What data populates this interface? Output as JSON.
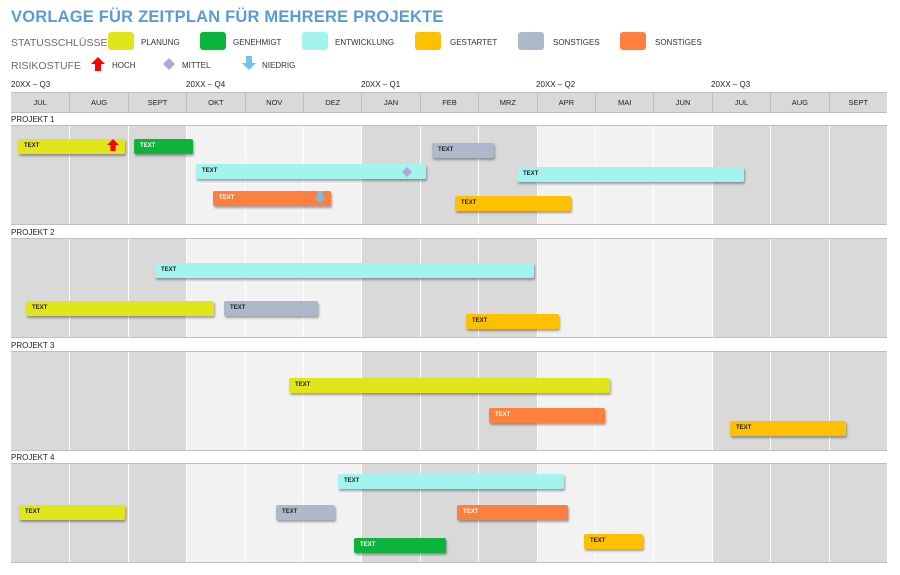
{
  "title": "VORLAGE FÜR ZEITPLAN FÜR MEHRERE PROJEKTE",
  "legend": {
    "status_label": "STATUSSCHLÜSSEL",
    "risk_label": "RISIKOSTUFE",
    "status": [
      {
        "label": "PLANUNG",
        "color": "#e0e61a"
      },
      {
        "label": "GENEHMIGT",
        "color": "#0db43b"
      },
      {
        "label": "ENTWICKLUNG",
        "color": "#a3f4ef"
      },
      {
        "label": "GESTARTET",
        "color": "#ffc000"
      },
      {
        "label": "SONSTIGES",
        "color": "#adb9ca"
      },
      {
        "label": "SONSTIGES",
        "color": "#ff7f3f"
      }
    ],
    "risk": [
      {
        "label": "HOCH",
        "icon": "up-arrow-icon",
        "color": "#ff0000"
      },
      {
        "label": "MITTEL",
        "icon": "diamond-icon",
        "color": "#b4a7d6"
      },
      {
        "label": "NIEDRIG",
        "icon": "down-arrow-icon",
        "color": "#6ec3f0"
      }
    ]
  },
  "timeline": {
    "quarters": [
      "20XX – Q3",
      "20XX – Q4",
      "20XX – Q1",
      "20XX – Q2",
      "20XX – Q3"
    ],
    "months": [
      "JUL",
      "AUG",
      "SEPT",
      "OKT",
      "NOV",
      "DEZ",
      "JAN",
      "FEB",
      "MRZ",
      "APR",
      "MAI",
      "JUN",
      "JUL",
      "AUG",
      "SEPT"
    ]
  },
  "projects": [
    {
      "name": "PROJEKT 1",
      "tasks": [
        {
          "label": "TEXT",
          "status": "planning"
        },
        {
          "label": "TEXT",
          "status": "approved"
        },
        {
          "label": "TEXT",
          "status": "development"
        },
        {
          "label": "TEXT",
          "status": "other-orange"
        },
        {
          "label": "TEXT",
          "status": "other-gray"
        },
        {
          "label": "TEXT",
          "status": "development"
        },
        {
          "label": "TEXT",
          "status": "started"
        }
      ]
    },
    {
      "name": "PROJEKT 2",
      "tasks": [
        {
          "label": "TEXT",
          "status": "development"
        },
        {
          "label": "TEXT",
          "status": "planning"
        },
        {
          "label": "TEXT",
          "status": "other-gray"
        },
        {
          "label": "TEXT",
          "status": "started"
        }
      ]
    },
    {
      "name": "PROJEKT 3",
      "tasks": [
        {
          "label": "TEXT",
          "status": "planning"
        },
        {
          "label": "TEXT",
          "status": "other-orange"
        },
        {
          "label": "TEXT",
          "status": "started"
        }
      ]
    },
    {
      "name": "PROJEKT 4",
      "tasks": [
        {
          "label": "TEXT",
          "status": "development"
        },
        {
          "label": "TEXT",
          "status": "planning"
        },
        {
          "label": "TEXT",
          "status": "other-gray"
        },
        {
          "label": "TEXT",
          "status": "other-orange"
        },
        {
          "label": "TEXT",
          "status": "started"
        },
        {
          "label": "TEXT",
          "status": "approved"
        }
      ]
    }
  ]
}
